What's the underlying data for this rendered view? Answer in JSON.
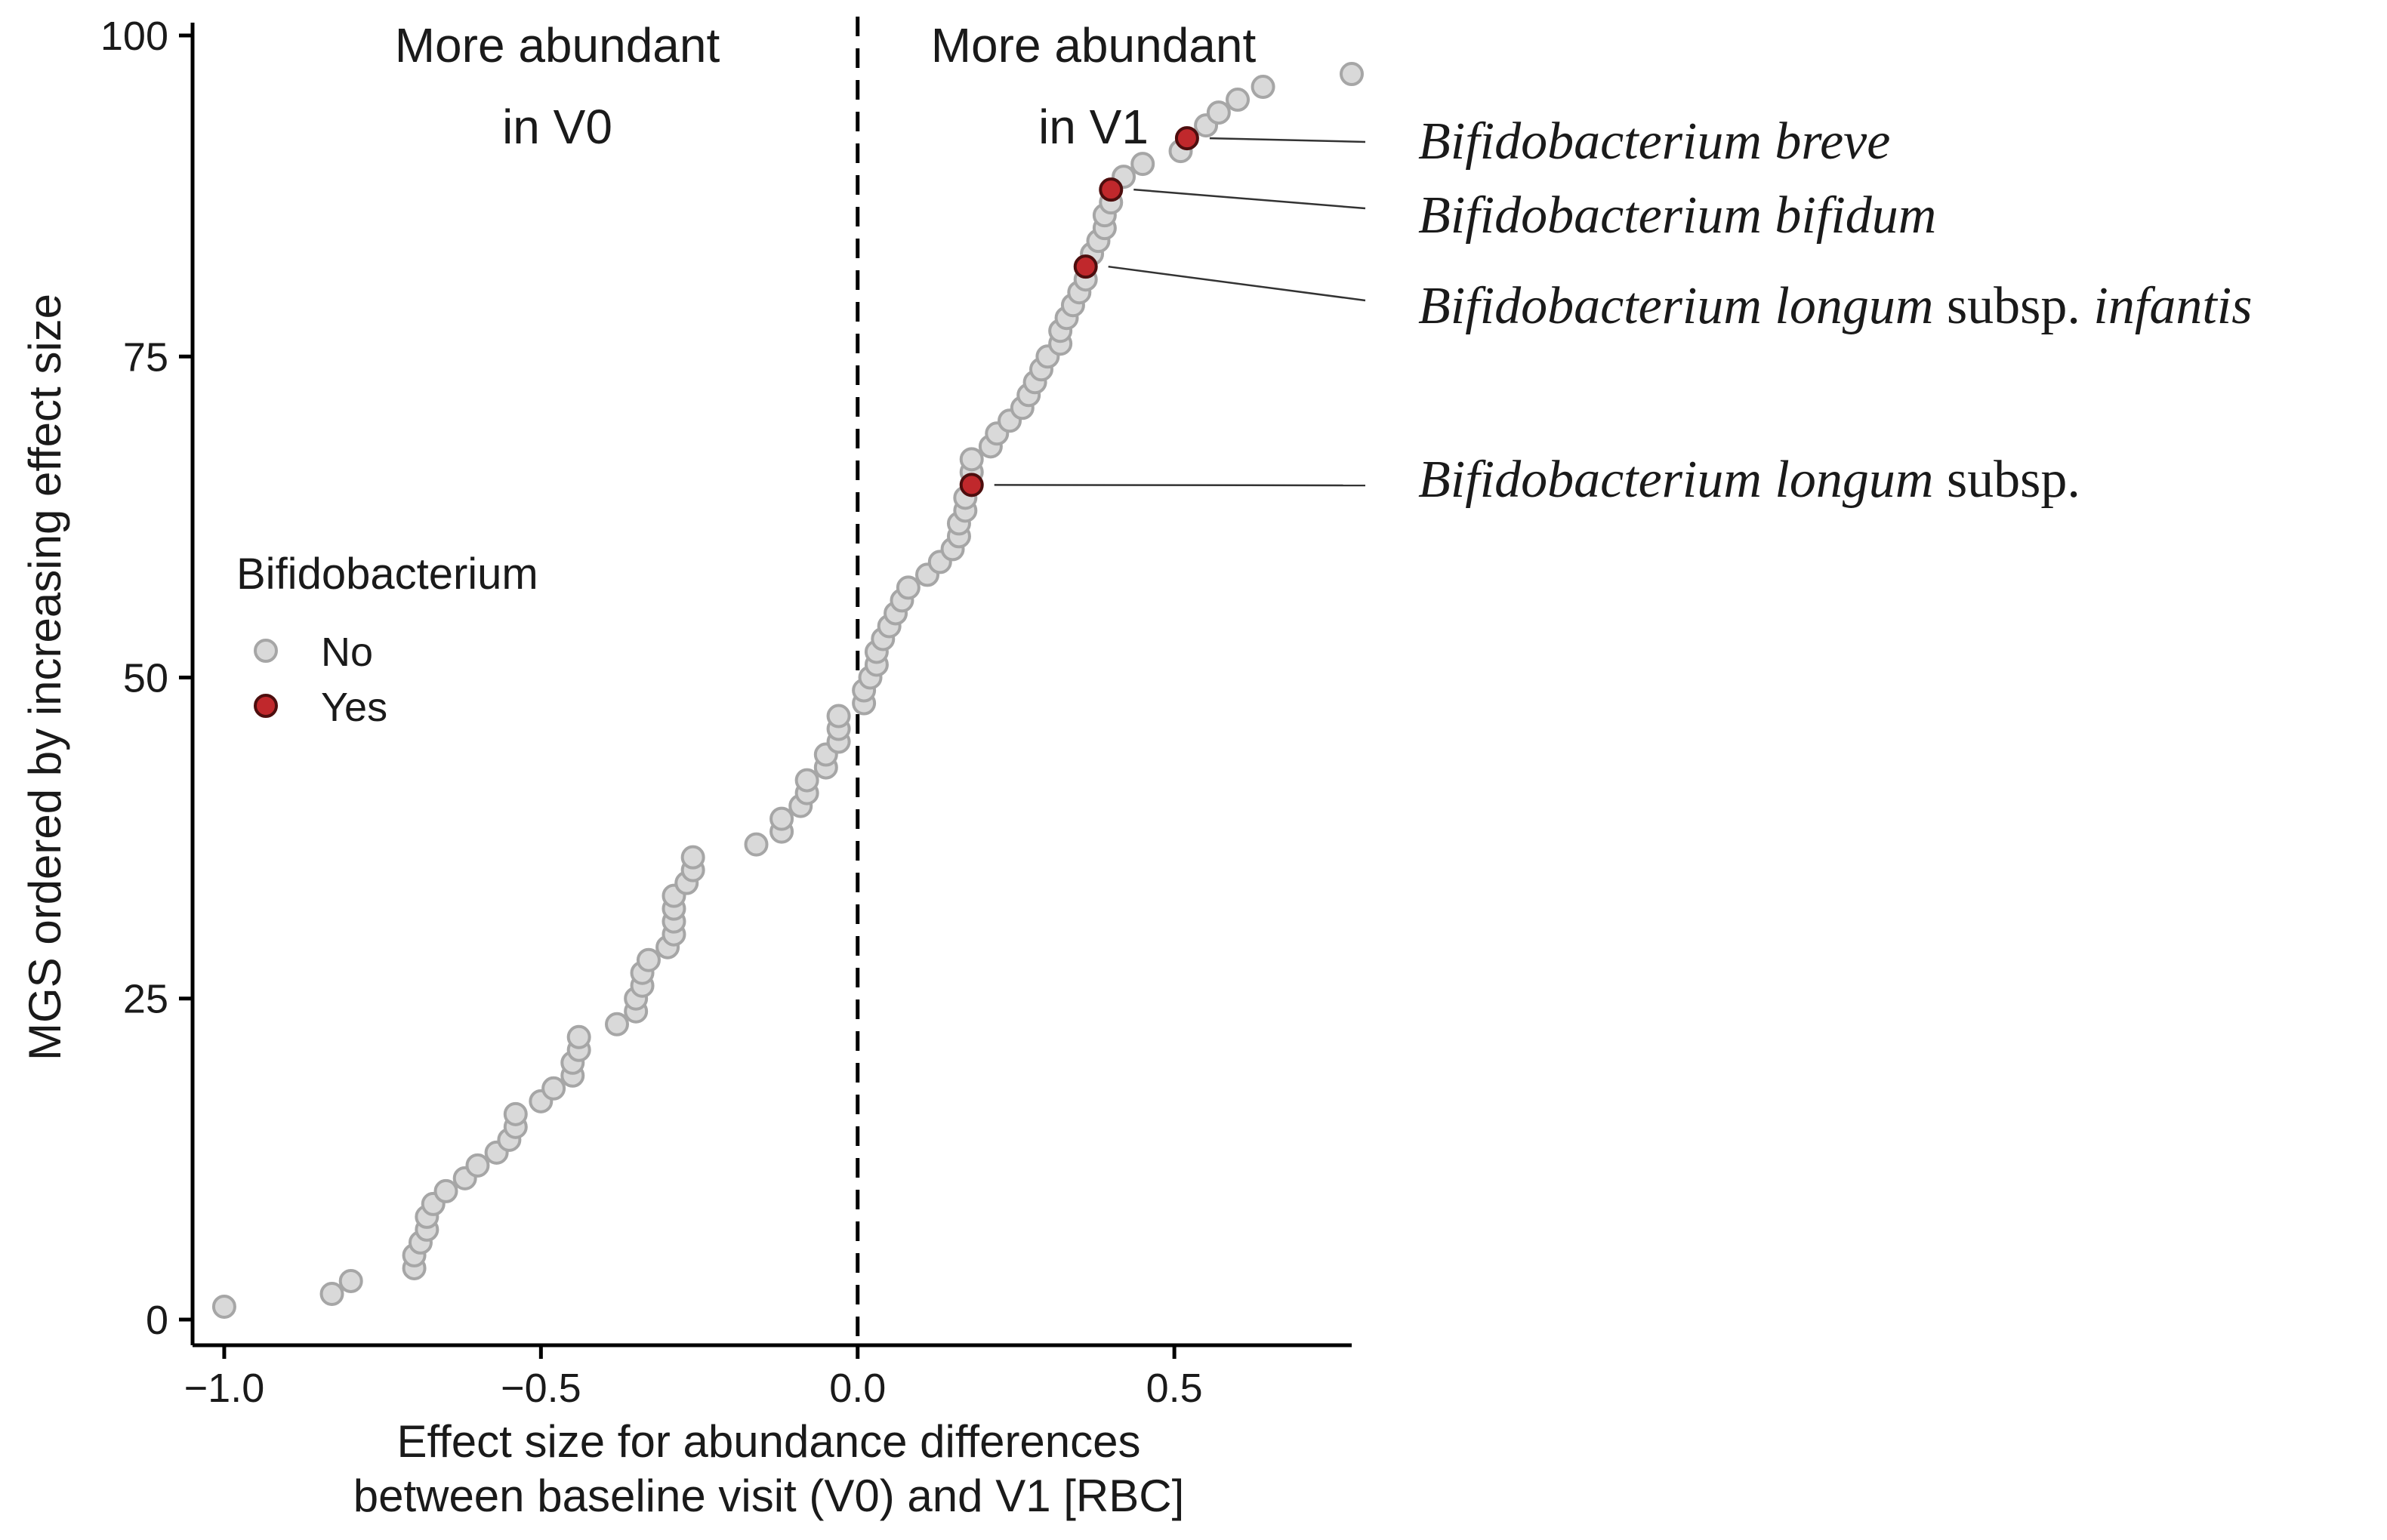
{
  "chart_data": {
    "type": "scatter",
    "xlabel_lines": [
      "Effect size for abundance differences",
      "between baseline visit (V0) and V1 [RBC]"
    ],
    "ylabel": "MGS ordered by increasing effect size",
    "xlim": [
      -1.05,
      0.78
    ],
    "ylim": [
      -2,
      101
    ],
    "x_ticks": [
      -1.0,
      -0.5,
      0.0,
      0.5
    ],
    "x_tick_labels": [
      "−1.0",
      "−0.5",
      "0.0",
      "0.5"
    ],
    "y_ticks": [
      0,
      25,
      50,
      75,
      100
    ],
    "y_tick_labels": [
      "0",
      "25",
      "50",
      "75",
      "100"
    ],
    "grid": false,
    "reference_line": {
      "x": 0,
      "style": "dashed"
    },
    "region_labels": [
      {
        "lines": [
          "More abundant",
          "in V0"
        ],
        "side": "left"
      },
      {
        "lines": [
          "More abundant",
          "in V1"
        ],
        "side": "right"
      }
    ],
    "legend": {
      "title": "Bifidobacterium",
      "placement": "left-middle",
      "entries": [
        {
          "label": "No",
          "color": "#d9d9d9",
          "stroke": "#a6a6a6"
        },
        {
          "label": "Yes",
          "color": "#c0282c",
          "stroke": "#4d0e0e"
        }
      ]
    },
    "series": [
      {
        "name": "No",
        "color": "#d9d9d9",
        "points": [
          [
            -1.0,
            1
          ],
          [
            -0.83,
            2
          ],
          [
            -0.8,
            3
          ],
          [
            -0.7,
            4
          ],
          [
            -0.7,
            5
          ],
          [
            -0.69,
            6
          ],
          [
            -0.68,
            7
          ],
          [
            -0.68,
            8
          ],
          [
            -0.67,
            9
          ],
          [
            -0.65,
            10
          ],
          [
            -0.62,
            11
          ],
          [
            -0.6,
            12
          ],
          [
            -0.57,
            13
          ],
          [
            -0.55,
            14
          ],
          [
            -0.54,
            15
          ],
          [
            -0.54,
            16
          ],
          [
            -0.5,
            17
          ],
          [
            -0.48,
            18
          ],
          [
            -0.45,
            19
          ],
          [
            -0.45,
            20
          ],
          [
            -0.44,
            21
          ],
          [
            -0.44,
            22
          ],
          [
            -0.38,
            23
          ],
          [
            -0.35,
            24
          ],
          [
            -0.35,
            25
          ],
          [
            -0.34,
            26
          ],
          [
            -0.34,
            27
          ],
          [
            -0.33,
            28
          ],
          [
            -0.3,
            29
          ],
          [
            -0.29,
            30
          ],
          [
            -0.29,
            31
          ],
          [
            -0.29,
            32
          ],
          [
            -0.29,
            33
          ],
          [
            -0.27,
            34
          ],
          [
            -0.26,
            35
          ],
          [
            -0.26,
            36
          ],
          [
            -0.16,
            37
          ],
          [
            -0.12,
            38
          ],
          [
            -0.12,
            39
          ],
          [
            -0.09,
            40
          ],
          [
            -0.08,
            41
          ],
          [
            -0.08,
            42
          ],
          [
            -0.05,
            43
          ],
          [
            -0.05,
            44
          ],
          [
            -0.03,
            45
          ],
          [
            -0.03,
            46
          ],
          [
            -0.03,
            47
          ],
          [
            0.01,
            48
          ],
          [
            0.01,
            49
          ],
          [
            0.02,
            50
          ],
          [
            0.03,
            51
          ],
          [
            0.03,
            52
          ],
          [
            0.04,
            53
          ],
          [
            0.05,
            54
          ],
          [
            0.06,
            55
          ],
          [
            0.07,
            56
          ],
          [
            0.08,
            57
          ],
          [
            0.11,
            58
          ],
          [
            0.13,
            59
          ],
          [
            0.15,
            60
          ],
          [
            0.16,
            61
          ],
          [
            0.16,
            62
          ],
          [
            0.17,
            63
          ],
          [
            0.17,
            64
          ],
          [
            0.18,
            66
          ],
          [
            0.18,
            67
          ],
          [
            0.21,
            68
          ],
          [
            0.22,
            69
          ],
          [
            0.24,
            70
          ],
          [
            0.26,
            71
          ],
          [
            0.27,
            72
          ],
          [
            0.28,
            73
          ],
          [
            0.29,
            74
          ],
          [
            0.3,
            75
          ],
          [
            0.32,
            76
          ],
          [
            0.32,
            77
          ],
          [
            0.33,
            78
          ],
          [
            0.34,
            79
          ],
          [
            0.35,
            80
          ],
          [
            0.36,
            81
          ],
          [
            0.37,
            83
          ],
          [
            0.38,
            84
          ],
          [
            0.39,
            85
          ],
          [
            0.39,
            86
          ],
          [
            0.4,
            87
          ],
          [
            0.42,
            89
          ],
          [
            0.45,
            90
          ],
          [
            0.51,
            91
          ],
          [
            0.55,
            93
          ],
          [
            0.57,
            94
          ],
          [
            0.6,
            95
          ],
          [
            0.64,
            96
          ],
          [
            0.78,
            97
          ]
        ]
      },
      {
        "name": "Yes",
        "color": "#c0282c",
        "points": [
          [
            0.18,
            65
          ],
          [
            0.36,
            82
          ],
          [
            0.4,
            88
          ],
          [
            0.52,
            92
          ]
        ]
      }
    ],
    "annotations": [
      {
        "target": [
          0.52,
          92
        ],
        "parts": [
          {
            "text": "Bifidobacterium breve",
            "italic": true
          }
        ]
      },
      {
        "target": [
          0.4,
          88
        ],
        "parts": [
          {
            "text": "Bifidobacterium bifidum",
            "italic": true
          }
        ]
      },
      {
        "target": [
          0.36,
          82
        ],
        "parts": [
          {
            "text": "Bifidobacterium longum",
            "italic": true
          },
          {
            "text": " subsp. ",
            "italic": false
          },
          {
            "text": "infantis",
            "italic": true
          }
        ]
      },
      {
        "target": [
          0.18,
          65
        ],
        "parts": [
          {
            "text": "Bifidobacterium longum",
            "italic": true
          },
          {
            "text": " subsp.",
            "italic": false
          }
        ]
      }
    ]
  }
}
